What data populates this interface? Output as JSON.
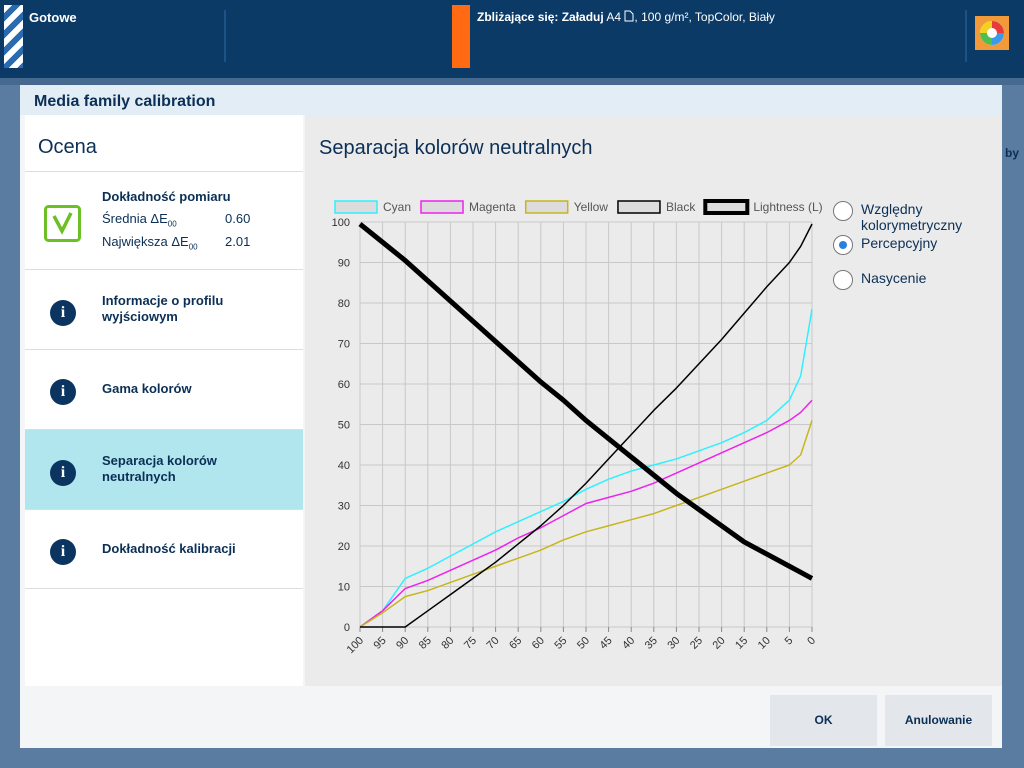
{
  "top_bar": {
    "status": "Gotowe",
    "upcoming_label": "Zbliżające się: Załaduj",
    "upcoming_format": "A4",
    "upcoming_details": ", 100 g/m², TopColor, Biały"
  },
  "background_fragment": "by",
  "dialog": {
    "title": "Media family calibration",
    "sidebar": {
      "heading": "Ocena",
      "selected": 3,
      "items": [
        {
          "title": "Dokładność pomiaru",
          "metrics": [
            {
              "label": "Średnia ΔE",
              "subscript": "00",
              "value": "0.60"
            },
            {
              "label": "Największa ΔE",
              "subscript": "00",
              "value": "2.01"
            }
          ]
        },
        {
          "title": "Informacje o profilu wyjściowym"
        },
        {
          "title": "Gama kolorów"
        },
        {
          "title": "Separacja kolorów neutralnych"
        },
        {
          "title": "Dokładność kalibracji"
        }
      ]
    },
    "panel_title": "Separacja kolorów neutralnych",
    "options": {
      "items": [
        "Względny kolorymetryczny",
        "Percepcyjny",
        "Nasycenie"
      ],
      "selected": 1
    },
    "buttons": [
      "OK",
      "Anulowanie"
    ]
  },
  "chart_data": {
    "type": "line",
    "x": [
      100,
      95,
      90,
      85,
      80,
      75,
      70,
      65,
      60,
      55,
      50,
      45,
      40,
      35,
      30,
      25,
      20,
      15,
      10,
      5,
      2.5,
      0
    ],
    "xlim": [
      100,
      0
    ],
    "xticks": [
      100,
      95,
      90,
      85,
      80,
      75,
      70,
      65,
      60,
      55,
      50,
      45,
      40,
      35,
      30,
      25,
      20,
      15,
      10,
      5,
      0
    ],
    "ylim": [
      0,
      100
    ],
    "yticks": [
      0,
      10,
      20,
      30,
      40,
      50,
      60,
      70,
      80,
      90,
      100
    ],
    "grid": true,
    "series": [
      {
        "name": "Cyan",
        "color": "#2ff0ff",
        "line_width": 1.5,
        "values": [
          0,
          4,
          12,
          14.5,
          17.5,
          20.5,
          23.5,
          26,
          28.5,
          31,
          34,
          36.5,
          38.5,
          40,
          41.5,
          43.5,
          45.5,
          48,
          51,
          56,
          62,
          78.5
        ]
      },
      {
        "name": "Magenta",
        "color": "#ee22ee",
        "line_width": 1.5,
        "values": [
          0,
          4,
          9.5,
          11.5,
          14,
          16.5,
          19,
          22,
          24.5,
          27.5,
          30.5,
          32,
          33.5,
          35.5,
          38,
          40.5,
          43,
          45.5,
          48,
          51,
          53,
          56
        ]
      },
      {
        "name": "Yellow",
        "color": "#c6b61c",
        "line_width": 1.5,
        "values": [
          0,
          3.5,
          7.5,
          9,
          11,
          13,
          15,
          17,
          19,
          21.5,
          23.5,
          25,
          26.5,
          28,
          30,
          32,
          34,
          36,
          38,
          40,
          42.5,
          51
        ]
      },
      {
        "name": "Black",
        "color": "#000000",
        "line_width": 1.5,
        "values": [
          0,
          0,
          0,
          4,
          8,
          12,
          16,
          20.5,
          25,
          30,
          35.5,
          41.5,
          47.5,
          53.5,
          59,
          65,
          71,
          77.5,
          84,
          90,
          94,
          99.5
        ]
      },
      {
        "name": "Lightness (L)",
        "color": "#000000",
        "line_width": 5,
        "values": [
          99.5,
          95,
          90.5,
          85.5,
          80.5,
          75.5,
          70.5,
          65.5,
          60.5,
          56,
          51,
          46.5,
          42,
          37.5,
          33,
          29,
          25,
          21,
          18,
          15,
          13.5,
          12
        ]
      }
    ]
  }
}
